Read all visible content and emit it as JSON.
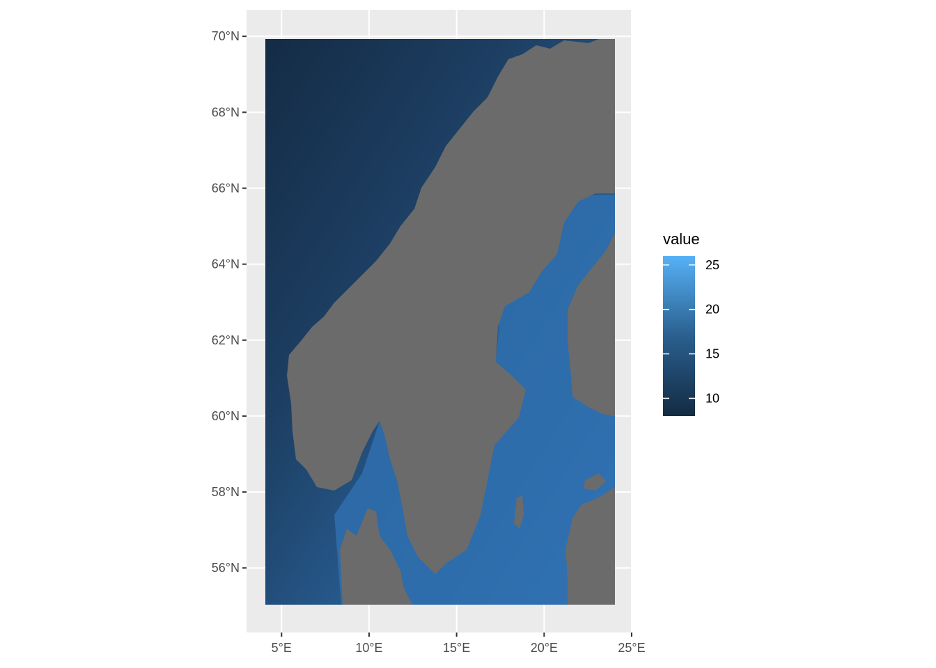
{
  "map": {
    "x_axis": {
      "ticks": [
        "5°E",
        "10°E",
        "15°E",
        "20°E",
        "25°E"
      ],
      "tick_values": [
        5,
        10,
        15,
        20,
        25
      ],
      "range": [
        3,
        25
      ]
    },
    "y_axis": {
      "ticks": [
        "56°N",
        "58°N",
        "60°N",
        "62°N",
        "64°N",
        "66°N",
        "68°N",
        "70°N"
      ],
      "tick_values": [
        56,
        58,
        60,
        62,
        64,
        66,
        68,
        70
      ],
      "range": [
        54.3,
        70.7
      ]
    },
    "raster_extent": {
      "lon": [
        4,
        24
      ],
      "lat": [
        55,
        70
      ]
    },
    "land_color": "#6b6b6b",
    "panel_background": "#ebebeb",
    "grid_color": "#ffffff",
    "legend": {
      "title": "value",
      "labels": [
        "25",
        "20",
        "15",
        "10"
      ],
      "values": [
        25,
        20,
        15,
        10
      ],
      "range": [
        8,
        26
      ],
      "color_low": "#132b43",
      "color_high": "#56b1f7"
    }
  }
}
